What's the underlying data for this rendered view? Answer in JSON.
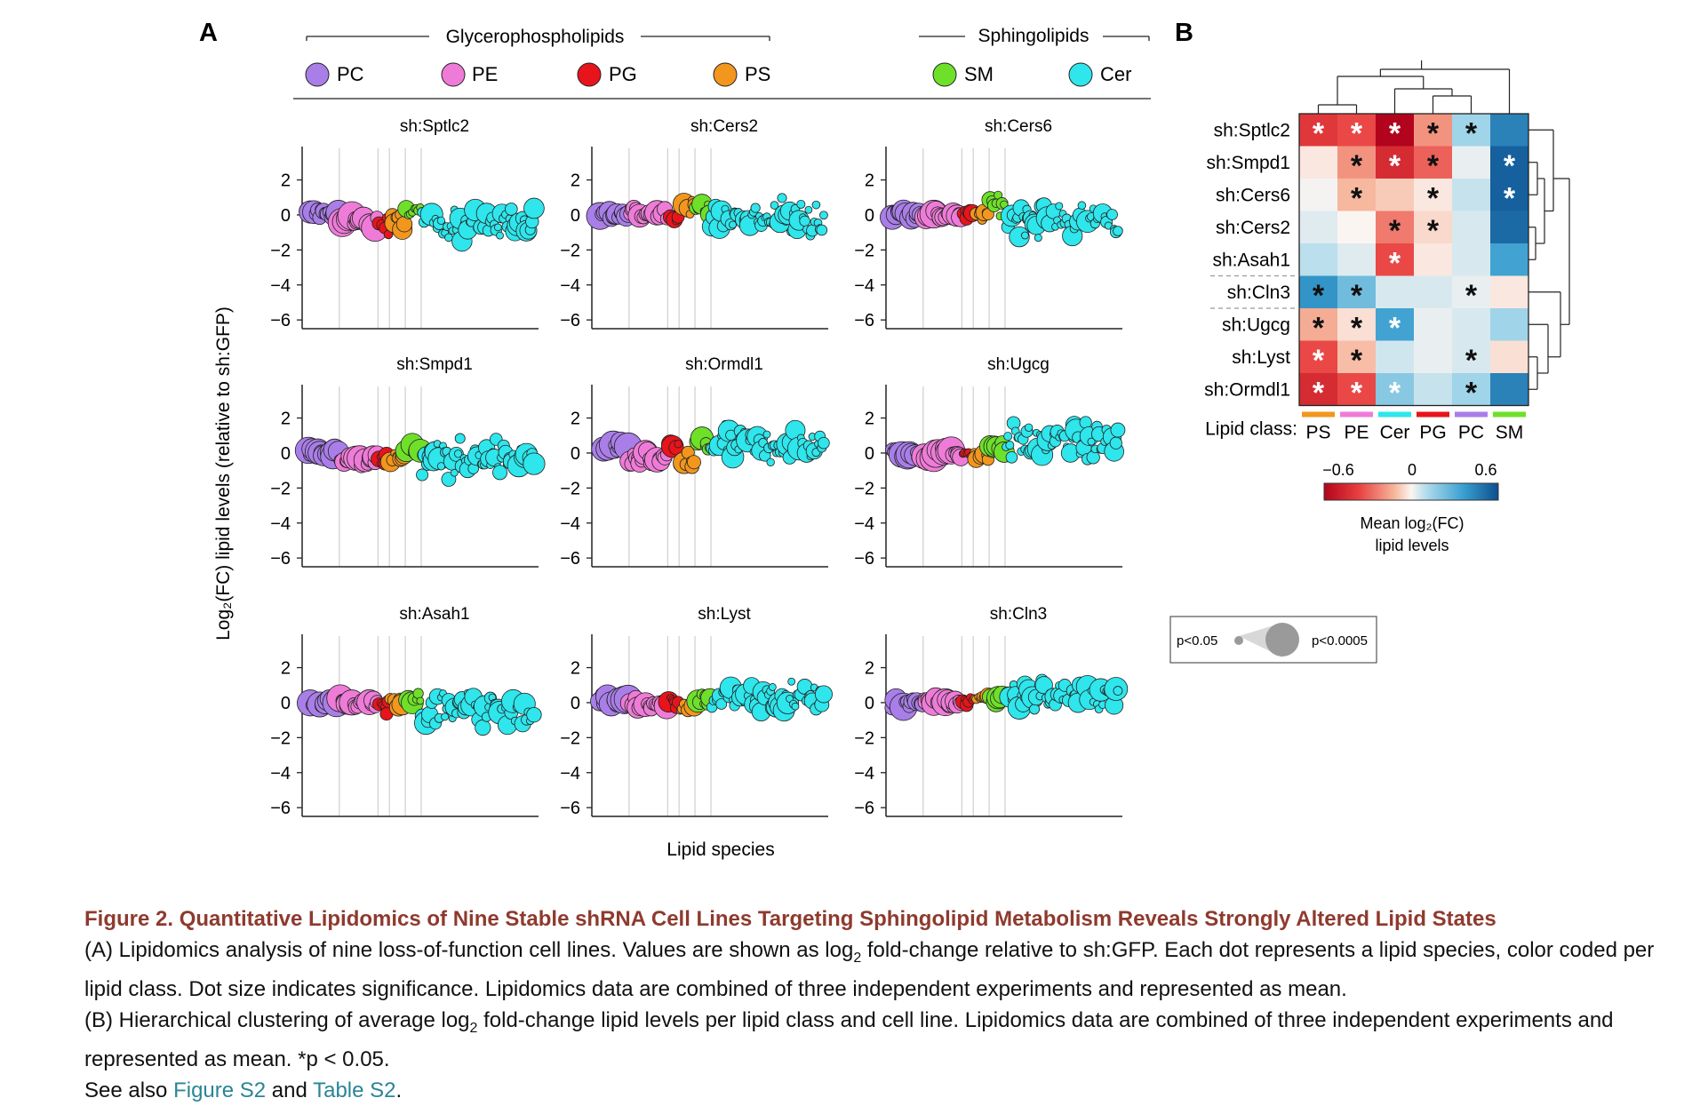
{
  "figure": {
    "panel_a_label": "A",
    "panel_b_label": "B",
    "group_glycero": "Glycerophospholipids",
    "group_sphingo": "Sphingolipids",
    "classes": [
      {
        "name": "PC",
        "color": "#a97ee8"
      },
      {
        "name": "PE",
        "color": "#ef7bd8"
      },
      {
        "name": "PG",
        "color": "#e8141b"
      },
      {
        "name": "PS",
        "color": "#f2961d"
      },
      {
        "name": "SM",
        "color": "#6ee02a"
      },
      {
        "name": "Cer",
        "color": "#2ee6ec"
      }
    ],
    "y_axis_label": "Log₂(FC) lipid levels (relative to sh:GFP)",
    "x_axis_label": "Lipid species",
    "y_ticks": [
      "2",
      "0",
      "−2",
      "−4",
      "−6"
    ],
    "panels": [
      {
        "title": "sh:Sptlc2"
      },
      {
        "title": "sh:Cers2"
      },
      {
        "title": "sh:Cers6"
      },
      {
        "title": "sh:Smpd1"
      },
      {
        "title": "sh:Ormdl1"
      },
      {
        "title": "sh:Ugcg"
      },
      {
        "title": "sh:Asah1"
      },
      {
        "title": "sh:Lyst"
      },
      {
        "title": "sh:Cln3"
      }
    ],
    "size_legend": {
      "small": "p<0.05",
      "large": "p<0.0005"
    },
    "heatmap": {
      "rows": [
        "sh:Sptlc2",
        "sh:Smpd1",
        "sh:Cers6",
        "sh:Cers2",
        "sh:Asah1",
        "sh:Cln3",
        "sh:Ugcg",
        "sh:Lyst",
        "sh:Ormdl1"
      ],
      "columns": [
        "PS",
        "PE",
        "Cer",
        "PG",
        "PC",
        "SM"
      ],
      "column_colors": [
        "#f2961d",
        "#ef7bd8",
        "#2ee6ec",
        "#e8141b",
        "#a97ee8",
        "#6ee02a"
      ],
      "row_label_title": "Lipid class:",
      "values": [
        [
          -0.5,
          -0.45,
          -0.72,
          -0.3,
          0.25,
          0.55
        ],
        [
          -0.05,
          -0.3,
          -0.55,
          -0.4,
          0.05,
          0.65
        ],
        [
          0.02,
          -0.22,
          -0.15,
          -0.05,
          0.15,
          0.65
        ],
        [
          0.08,
          0.0,
          -0.35,
          -0.1,
          0.1,
          0.62
        ],
        [
          0.18,
          0.08,
          -0.45,
          -0.05,
          0.1,
          0.45
        ],
        [
          0.5,
          0.35,
          0.1,
          0.1,
          0.05,
          -0.05
        ],
        [
          -0.25,
          -0.08,
          0.45,
          0.05,
          0.1,
          0.25
        ],
        [
          -0.45,
          -0.2,
          0.12,
          0.05,
          0.1,
          -0.08
        ],
        [
          -0.55,
          -0.45,
          0.3,
          0.15,
          0.25,
          0.55
        ]
      ],
      "stars": [
        [
          "w",
          "w",
          "w",
          "k",
          "k",
          ""
        ],
        [
          "",
          "k",
          "w",
          "k",
          "",
          "w"
        ],
        [
          "",
          "k",
          "",
          "k",
          "",
          "w"
        ],
        [
          "",
          "",
          "k",
          "k",
          "",
          ""
        ],
        [
          "",
          "",
          "w",
          "",
          "",
          ""
        ],
        [
          "k",
          "k",
          "",
          "",
          "k",
          ""
        ],
        [
          "k",
          "k",
          "w",
          "",
          "",
          ""
        ],
        [
          "w",
          "k",
          "",
          "",
          "k",
          ""
        ],
        [
          "w",
          "w",
          "w",
          "",
          "k",
          ""
        ]
      ],
      "star_char": "*",
      "colorbar_ticks": [
        "−0.6",
        "0",
        "0.6"
      ],
      "colorbar_title": "Mean log₂(FC)",
      "colorbar_subtitle": "lipid levels"
    }
  },
  "caption": {
    "title": "Figure 2.  Quantitative Lipidomics of Nine Stable shRNA Cell Lines Targeting Sphingolipid Metabolism Reveals Strongly Altered Lipid States",
    "a_text_1": "(A) Lipidomics analysis of nine loss-of-function cell lines. Values are shown as log",
    "a_sub": "2",
    "a_text_2": " fold-change relative to sh:GFP. Each dot represents a lipid species, color coded per lipid class. Dot size indicates significance. Lipidomics data are combined of three independent experiments and represented as mean.",
    "b_text_1": "(B) Hierarchical clustering of average log",
    "b_sub": "2",
    "b_text_2": " fold-change lipid levels per lipid class and cell line. Lipidomics data are combined of three independent experiments and represented as mean. *p < 0.05.",
    "see_also": "See also ",
    "link1": "Figure S2",
    "and": " and ",
    "link2": "Table S2",
    "end": "."
  }
}
